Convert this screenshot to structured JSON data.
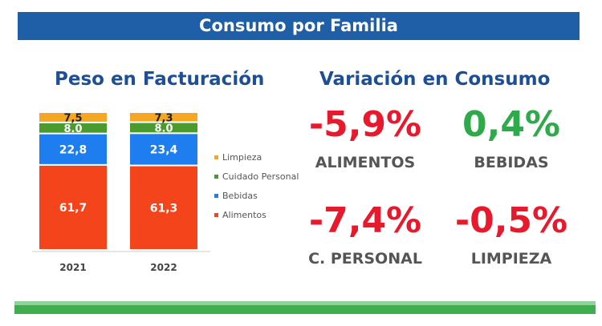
{
  "banner_title": "Consumo por Familia",
  "left_title": "Peso en Facturación",
  "right_title": "Variación en Consumo",
  "chart_data": {
    "type": "bar",
    "stacked": true,
    "categories": [
      "2021",
      "2022"
    ],
    "series": [
      {
        "name": "Alimentos",
        "values": [
          61.7,
          61.3
        ],
        "labels": [
          "61,7",
          "61,3"
        ],
        "color": "#f4441c"
      },
      {
        "name": "Bebidas",
        "values": [
          22.8,
          23.4
        ],
        "labels": [
          "22,8",
          "23,4"
        ],
        "color": "#1e7ef0"
      },
      {
        "name": "Cuidado Personal",
        "values": [
          8.0,
          8.0
        ],
        "labels": [
          "8.0",
          "8.0"
        ],
        "color": "#4a9a2e"
      },
      {
        "name": "Limpieza",
        "values": [
          7.5,
          7.3
        ],
        "labels": [
          "7,5",
          "7,3"
        ],
        "color": "#f5a623"
      }
    ],
    "legend": "right",
    "grid": false
  },
  "variations": [
    {
      "value": "-5,9%",
      "label": "ALIMENTOS",
      "color": "#e8192c"
    },
    {
      "value": "0,4%",
      "label": "BEBIDAS",
      "color": "#2eaa4a"
    },
    {
      "value": "-7,4%",
      "label": "C. PERSONAL",
      "color": "#e8192c"
    },
    {
      "value": "-0,5%",
      "label": "LIMPIEZA",
      "color": "#e8192c"
    }
  ]
}
